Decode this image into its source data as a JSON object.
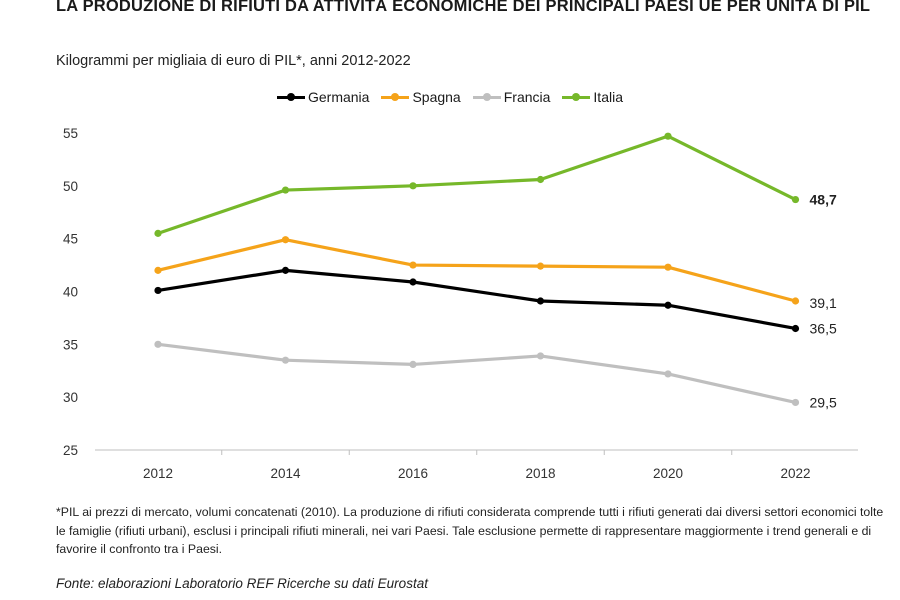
{
  "header": {
    "title": "LA PRODUZIONE DI RIFIUTI DA ATTIVITÀ ECONOMICHE DEI PRINCIPALI PAESI UE PER UNITÀ DI PIL",
    "subtitle": "Kilogrammi per migliaia di euro di PIL*, anni 2012-2022"
  },
  "chart_data": {
    "type": "line",
    "title": "LA PRODUZIONE DI RIFIUTI DA ATTIVITÀ ECONOMICHE DEI PRINCIPALI PAESI UE PER UNITÀ DI PIL",
    "subtitle": "Kilogrammi per migliaia di euro di PIL*, anni 2012-2022",
    "xlabel": "",
    "ylabel": "",
    "x": [
      2012,
      2014,
      2016,
      2018,
      2020,
      2022
    ],
    "x_tick_labels": [
      "2012",
      "2014",
      "2016",
      "2018",
      "2020",
      "2022"
    ],
    "ylim": [
      25,
      55
    ],
    "y_ticks": [
      25,
      30,
      35,
      40,
      45,
      50,
      55
    ],
    "grid": false,
    "legend_position": "top-center",
    "series": [
      {
        "name": "Germania",
        "color": "#000000",
        "values": [
          40.1,
          42.0,
          40.9,
          39.1,
          38.7,
          36.5
        ],
        "end_label": "36,5",
        "end_label_bold": false
      },
      {
        "name": "Spagna",
        "color": "#f5a31a",
        "values": [
          42.0,
          44.9,
          42.5,
          42.4,
          42.3,
          39.1
        ],
        "end_label": "39,1",
        "end_label_bold": false
      },
      {
        "name": "Francia",
        "color": "#bfbfbf",
        "values": [
          35.0,
          33.5,
          33.1,
          33.9,
          32.2,
          29.5
        ],
        "end_label": "29,5",
        "end_label_bold": false
      },
      {
        "name": "Italia",
        "color": "#76b82a",
        "values": [
          45.5,
          49.6,
          50.0,
          50.6,
          54.7,
          48.7
        ],
        "end_label": "48,7",
        "end_label_bold": true
      }
    ]
  },
  "footnote": "*PIL ai prezzi di mercato, volumi concatenati (2010). La produzione di rifiuti considerata comprende tutti i rifiuti generati dai diversi settori economici tolte le famiglie (rifiuti urbani), esclusi i principali rifiuti minerali, nei vari Paesi. Tale esclusione permette di rappresentare maggiormente i trend generali e di favorire il confronto tra i Paesi.",
  "source": "Fonte: elaborazioni Laboratorio REF Ricerche su dati Eurostat"
}
